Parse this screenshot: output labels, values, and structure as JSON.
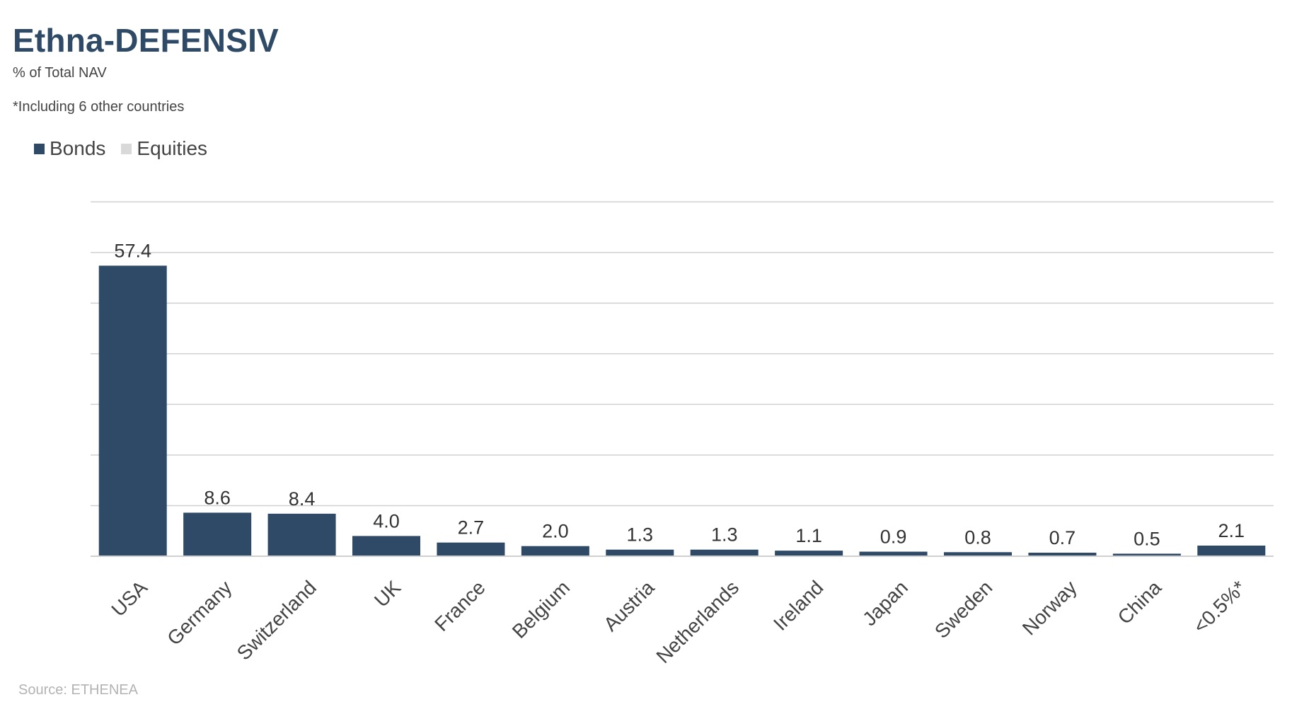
{
  "title": "Ethna-DEFENSIV",
  "subtitle": "% of Total NAV",
  "footnote": "*Including 6 other countries",
  "source": "Source: ETHENEA",
  "colors": {
    "bonds": "#2e4a66",
    "equities": "#d9d9d9",
    "grid": "#d0d0d0",
    "title": "#2e4a66",
    "source": "#b3b3b3"
  },
  "legend": [
    {
      "label": "Bonds",
      "color": "#2e4a66"
    },
    {
      "label": "Equities",
      "color": "#d9d9d9"
    }
  ],
  "chart_data": {
    "type": "bar",
    "categories": [
      "USA",
      "Germany",
      "Switzerland",
      "UK",
      "France",
      "Belgium",
      "Austria",
      "Netherlands",
      "Ireland",
      "Japan",
      "Sweden",
      "Norway",
      "China",
      "<0.5%*"
    ],
    "series": [
      {
        "name": "Bonds",
        "values": [
          57.4,
          8.6,
          8.4,
          4.0,
          2.7,
          2.0,
          1.3,
          1.3,
          1.1,
          0.9,
          0.8,
          0.7,
          0.5,
          2.1
        ]
      },
      {
        "name": "Equities",
        "values": [
          0,
          0,
          0,
          0,
          0,
          0,
          0,
          0,
          0,
          0,
          0,
          0,
          0,
          0
        ]
      }
    ],
    "data_labels": [
      "57.4",
      "8.6",
      "8.4",
      "4.0",
      "2.7",
      "2.0",
      "1.3",
      "1.3",
      "1.1",
      "0.9",
      "0.8",
      "0.7",
      "0.5",
      "2.1"
    ],
    "ylim": [
      0,
      70
    ],
    "ytick_step": 10,
    "yaxis_labels_shown": false,
    "grid": true,
    "legend_position": "top-left",
    "xlabel": "",
    "ylabel": ""
  }
}
